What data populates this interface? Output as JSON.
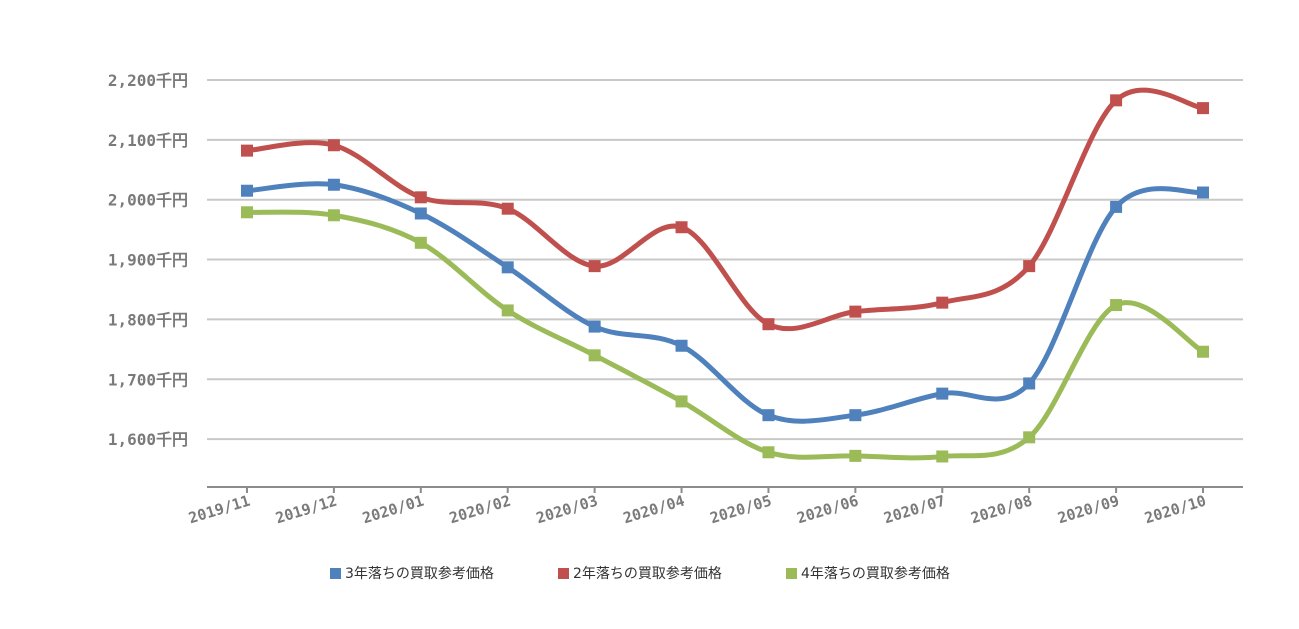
{
  "chart_data": {
    "type": "line",
    "categories": [
      "2019/11",
      "2019/12",
      "2020/01",
      "2020/02",
      "2020/03",
      "2020/04",
      "2020/05",
      "2020/06",
      "2020/07",
      "2020/08",
      "2020/09",
      "2020/10"
    ],
    "series": [
      {
        "name": "3年落ちの買取参考価格",
        "color": "#4f81bd",
        "values": [
          2015,
          2025,
          1977,
          1887,
          1788,
          1756,
          1640,
          1640,
          1676,
          1693,
          1988,
          2012
        ]
      },
      {
        "name": "2年落ちの買取参考価格",
        "color": "#c0504d",
        "values": [
          2082,
          2091,
          2004,
          1985,
          1889,
          1954,
          1792,
          1813,
          1828,
          1889,
          2166,
          2153
        ]
      },
      {
        "name": "4年落ちの買取参考価格",
        "color": "#9bbb59",
        "values": [
          1979,
          1974,
          1928,
          1815,
          1740,
          1663,
          1578,
          1572,
          1571,
          1603,
          1824,
          1746
        ]
      }
    ],
    "y_ticks": [
      1600,
      1700,
      1800,
      1900,
      2000,
      2100,
      2200
    ],
    "y_tick_labels": [
      "1,600千円",
      "1,700千円",
      "1,800千円",
      "1,900千円",
      "2,000千円",
      "2,100千円",
      "2,200千円"
    ],
    "ylim": [
      1520,
      2200
    ],
    "grid": true,
    "smooth": true,
    "legend_position": "bottom",
    "title": "",
    "xlabel": "",
    "ylabel": ""
  }
}
